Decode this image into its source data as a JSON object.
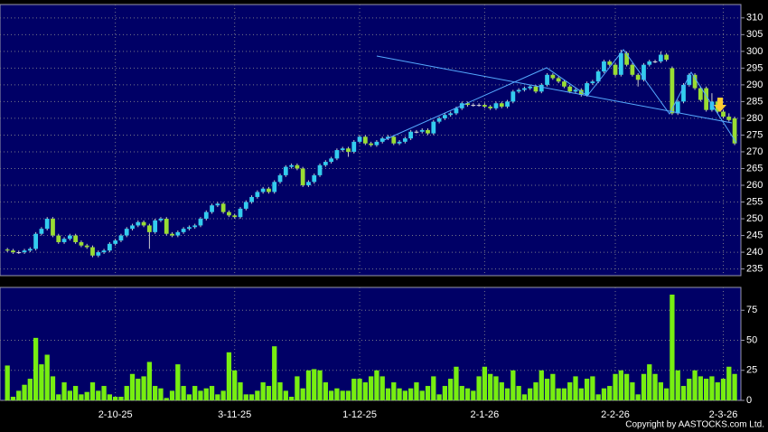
{
  "chart_data": {
    "type": "candlestick",
    "ohlc": [
      [
        240.8,
        241.3,
        240,
        240.5
      ],
      [
        240.5,
        241,
        239.5,
        240
      ],
      [
        240,
        240.5,
        239.5,
        240
      ],
      [
        240,
        241,
        239.5,
        240.5
      ],
      [
        240.5,
        241.5,
        240,
        241
      ],
      [
        241,
        246,
        240.5,
        245.5
      ],
      [
        245.5,
        247.5,
        245,
        247
      ],
      [
        247,
        250.5,
        246.5,
        250
      ],
      [
        250,
        250.5,
        244.5,
        245
      ],
      [
        245,
        245.5,
        242.5,
        243
      ],
      [
        243,
        244.5,
        242.5,
        244
      ],
      [
        244,
        245.5,
        243.5,
        245
      ],
      [
        245,
        245.5,
        242.5,
        243
      ],
      [
        243,
        243.5,
        241.5,
        242
      ],
      [
        242,
        242.5,
        241,
        241.5
      ],
      [
        241.5,
        242,
        238.5,
        239
      ],
      [
        239,
        240.5,
        238.5,
        240
      ],
      [
        240,
        241,
        239.5,
        240.5
      ],
      [
        240.5,
        243,
        240,
        242.5
      ],
      [
        242.5,
        244,
        242,
        243.5
      ],
      [
        243.5,
        245.5,
        243,
        245
      ],
      [
        245,
        247.5,
        244.5,
        247
      ],
      [
        247,
        248.5,
        246.5,
        248
      ],
      [
        248,
        249.5,
        247.5,
        249
      ],
      [
        249,
        249.5,
        247.5,
        248
      ],
      [
        248,
        248.5,
        241,
        246
      ],
      [
        246,
        250,
        245.5,
        249.5
      ],
      [
        249.5,
        250.5,
        249,
        250
      ],
      [
        250,
        250.5,
        245,
        245.5
      ],
      [
        245.5,
        246,
        244.5,
        245
      ],
      [
        245,
        246.5,
        244.5,
        246
      ],
      [
        246,
        247.5,
        245.5,
        247
      ],
      [
        247,
        248,
        246.5,
        247.5
      ],
      [
        247.5,
        248.5,
        247,
        248
      ],
      [
        248,
        250.5,
        247.5,
        250
      ],
      [
        250,
        252.5,
        249.5,
        252
      ],
      [
        252,
        254.5,
        251.5,
        254
      ],
      [
        254,
        255,
        253.5,
        254.5
      ],
      [
        254.5,
        255,
        251.5,
        252
      ],
      [
        252,
        252.5,
        250.5,
        251
      ],
      [
        251,
        251.5,
        250,
        250.5
      ],
      [
        250.5,
        253.5,
        250,
        253
      ],
      [
        253,
        255.5,
        252.5,
        255
      ],
      [
        255,
        257,
        254.5,
        256.5
      ],
      [
        256.5,
        258.5,
        256,
        258
      ],
      [
        258,
        259.5,
        257.5,
        259
      ],
      [
        259,
        259.5,
        257.5,
        258
      ],
      [
        258,
        261.5,
        257.5,
        261
      ],
      [
        261,
        263.5,
        260.5,
        263
      ],
      [
        263,
        266,
        262.5,
        265.5
      ],
      [
        265.5,
        266.5,
        265,
        266
      ],
      [
        266,
        266.5,
        264.5,
        265
      ],
      [
        265,
        265.5,
        259.5,
        260
      ],
      [
        260,
        261.5,
        259.5,
        261
      ],
      [
        261,
        263.5,
        260.5,
        263
      ],
      [
        263,
        266.5,
        262.5,
        266
      ],
      [
        266,
        267.5,
        265.5,
        267
      ],
      [
        267,
        268.5,
        266.5,
        268
      ],
      [
        268,
        271,
        267.5,
        270.5
      ],
      [
        270.5,
        271.5,
        270,
        271
      ],
      [
        271,
        271.5,
        268.5,
        270
      ],
      [
        270,
        273.5,
        269.5,
        273
      ],
      [
        273,
        275,
        272.5,
        274.5
      ],
      [
        274.5,
        275,
        272,
        272.5
      ],
      [
        272.5,
        273,
        271.5,
        272
      ],
      [
        272,
        273.5,
        271.5,
        273
      ],
      [
        273,
        274.5,
        272.5,
        274
      ],
      [
        274,
        275,
        273.5,
        274.5
      ],
      [
        274.5,
        275,
        272,
        272.5
      ],
      [
        272.5,
        273.5,
        272,
        273
      ],
      [
        273,
        274.5,
        272.5,
        274
      ],
      [
        274,
        276.5,
        273.5,
        276
      ],
      [
        276,
        276.5,
        275.5,
        276
      ],
      [
        276,
        277,
        275.5,
        276.5
      ],
      [
        276.5,
        277,
        275,
        275.5
      ],
      [
        275.5,
        279.5,
        275,
        279
      ],
      [
        279,
        280.5,
        278.5,
        280
      ],
      [
        280,
        281.5,
        279.5,
        281
      ],
      [
        281,
        282,
        280.5,
        281.5
      ],
      [
        281.5,
        283.5,
        281,
        283
      ],
      [
        283,
        285,
        282.5,
        284.5
      ],
      [
        284.5,
        285,
        283.5,
        284
      ],
      [
        284,
        284.5,
        283.5,
        284
      ],
      [
        284,
        284.5,
        283.5,
        284
      ],
      [
        284,
        284.5,
        283,
        283.5
      ],
      [
        283.5,
        284,
        282.5,
        283
      ],
      [
        283,
        285,
        282.5,
        284.5
      ],
      [
        284.5,
        285,
        283,
        283.5
      ],
      [
        283.5,
        285.5,
        283,
        285
      ],
      [
        285,
        288.5,
        284.5,
        288
      ],
      [
        288,
        289,
        287.5,
        288.5
      ],
      [
        288.5,
        289.5,
        288,
        289
      ],
      [
        289,
        290,
        288.5,
        289.5
      ],
      [
        289.5,
        290,
        287.5,
        288
      ],
      [
        288,
        290.5,
        287.5,
        290
      ],
      [
        290,
        293.5,
        289.5,
        293
      ],
      [
        293,
        293.5,
        291.5,
        292
      ],
      [
        292,
        292.5,
        290.5,
        291
      ],
      [
        291,
        291.5,
        289,
        289.5
      ],
      [
        289.5,
        290,
        287.5,
        288
      ],
      [
        288,
        289,
        287.5,
        288.5
      ],
      [
        288.5,
        289,
        286.5,
        287
      ],
      [
        287,
        291,
        286.5,
        290.5
      ],
      [
        290.5,
        291.5,
        290,
        291
      ],
      [
        291,
        294.5,
        290.5,
        294
      ],
      [
        294,
        297.5,
        293.5,
        297
      ],
      [
        297,
        297.5,
        295.5,
        296
      ],
      [
        296,
        296.5,
        292.5,
        293
      ],
      [
        293,
        300.5,
        292.5,
        299.5
      ],
      [
        299.5,
        300,
        295.5,
        296
      ],
      [
        296,
        296.5,
        292.5,
        293
      ],
      [
        293,
        293.5,
        289.5,
        291.5
      ],
      [
        291.5,
        296.5,
        291,
        296
      ],
      [
        296,
        297.5,
        295.5,
        297
      ],
      [
        297,
        297.5,
        296.5,
        297
      ],
      [
        297,
        300,
        296.5,
        299
      ],
      [
        299,
        299.5,
        297,
        297.5
      ],
      [
        295,
        295.5,
        281,
        281.5
      ],
      [
        281.5,
        285.5,
        281,
        285
      ],
      [
        285,
        290.5,
        284.5,
        290
      ],
      [
        290,
        293.5,
        289.5,
        293
      ],
      [
        293,
        293.5,
        288.5,
        289
      ],
      [
        289,
        289.5,
        285,
        285.5
      ],
      [
        289,
        289.5,
        282,
        282.5
      ],
      [
        282.5,
        287.5,
        282,
        285
      ],
      [
        285,
        285.5,
        281.5,
        282
      ],
      [
        282,
        282.5,
        280,
        280.5
      ],
      [
        280.5,
        281.5,
        279,
        279.5
      ],
      [
        280,
        280.5,
        272,
        272.5
      ]
    ],
    "volume": [
      29,
      3,
      8,
      13,
      18,
      52,
      30,
      38,
      20,
      5,
      15,
      8,
      12,
      5,
      7,
      15,
      8,
      12,
      5,
      3,
      3,
      12,
      22,
      18,
      20,
      32,
      12,
      10,
      2,
      8,
      30,
      12,
      5,
      12,
      8,
      10,
      12,
      5,
      8,
      40,
      25,
      15,
      5,
      5,
      8,
      15,
      12,
      45,
      15,
      8,
      3,
      20,
      10,
      25,
      26,
      25,
      15,
      8,
      10,
      8,
      8,
      18,
      18,
      15,
      20,
      25,
      20,
      10,
      15,
      10,
      8,
      10,
      15,
      8,
      12,
      20,
      5,
      12,
      18,
      28,
      12,
      10,
      8,
      20,
      28,
      22,
      20,
      15,
      10,
      25,
      12,
      5,
      10,
      15,
      25,
      18,
      22,
      10,
      10,
      15,
      20,
      10,
      18,
      20,
      5,
      10,
      12,
      22,
      25,
      22,
      15,
      5,
      22,
      30,
      22,
      15,
      10,
      88,
      25,
      12,
      18,
      25,
      20,
      18,
      20,
      15,
      18,
      28,
      22
    ],
    "up_color": "#33ccee",
    "down_color": "#99dd33",
    "volume_color": "#77ee11",
    "xlim": [
      -1.3,
      129.1
    ],
    "xticks": [
      {
        "value": 19,
        "label": "2-10-25"
      },
      {
        "value": 40,
        "label": "3-11-25"
      },
      {
        "value": 62,
        "label": "1-12-25"
      },
      {
        "value": 84,
        "label": "2-1-26"
      },
      {
        "value": 107,
        "label": "2-2-26"
      },
      {
        "value": 126,
        "label": "2-3-26"
      }
    ],
    "ylim": [
      233,
      314
    ],
    "yticks": [
      235,
      240,
      245,
      250,
      255,
      260,
      265,
      270,
      275,
      280,
      285,
      290,
      295,
      300,
      305,
      310
    ],
    "volume_ylim": [
      0,
      94
    ],
    "volume_yticks": [
      0,
      25,
      50,
      75
    ],
    "grid": true,
    "copyright": "Copyright by AASTOCKS.com Ltd."
  }
}
